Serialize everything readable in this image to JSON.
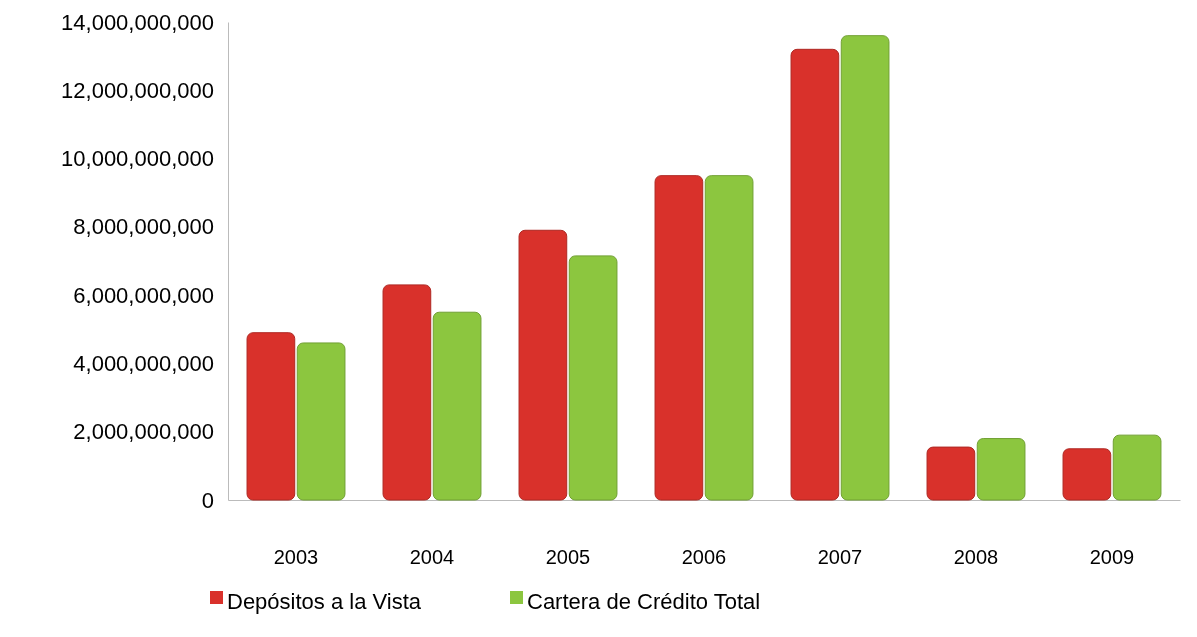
{
  "chart_data": {
    "type": "bar",
    "categories": [
      "2003",
      "2004",
      "2005",
      "2006",
      "2007",
      "2008",
      "2009"
    ],
    "series": [
      {
        "name": "Depósitos a la Vista",
        "color": "#d9312b",
        "values": [
          4900000000,
          6300000000,
          7900000000,
          9500000000,
          13200000000,
          1550000000,
          1500000000
        ]
      },
      {
        "name": "Cartera de Crédito Total",
        "color": "#8cc63f",
        "values": [
          4600000000,
          5500000000,
          7150000000,
          9500000000,
          13600000000,
          1800000000,
          1900000000
        ]
      }
    ],
    "ylim": [
      0,
      14000000000
    ],
    "yticks": [
      0,
      {
        "value": 2000000000,
        "label": "2,000,000,000"
      },
      {
        "value": 4000000000,
        "label": "4,000,000,000"
      },
      {
        "value": 6000000000,
        "label": "6,000,000,000"
      },
      {
        "value": 8000000000,
        "label": "8,000,000,000"
      },
      {
        "value": 10000000000,
        "label": "10,000,000,000"
      },
      {
        "value": 12000000000,
        "label": "12,000,000,000"
      },
      {
        "value": 14000000000,
        "label": "14,000,000,000"
      }
    ],
    "grid": false,
    "legend": "bottom"
  }
}
